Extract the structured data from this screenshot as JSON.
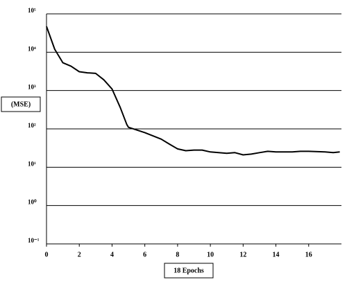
{
  "chart_data": {
    "type": "line",
    "y_label": "(MSE)",
    "x_label": "18 Epochs",
    "x": [
      0,
      0.5,
      1,
      1.5,
      2,
      2.5,
      3,
      3.5,
      4,
      4.5,
      4.9,
      5,
      6,
      7,
      7.5,
      8,
      8.5,
      9,
      9.5,
      10,
      11,
      11.5,
      12,
      12.5,
      13,
      13.5,
      14,
      15,
      15.5,
      16,
      17,
      17.5,
      17.9
    ],
    "series": [
      {
        "name": "MSE",
        "color": "#000000",
        "values": [
          47000,
          12000,
          5300,
          4300,
          3100,
          2900,
          2800,
          1900,
          1100,
          360,
          130,
          110,
          80,
          54,
          40,
          30,
          27,
          28,
          28,
          25,
          23,
          24,
          21,
          22,
          24,
          26,
          25,
          25,
          26,
          26,
          25,
          24,
          25
        ]
      }
    ],
    "xlim": [
      0,
      18
    ],
    "xticks": [
      0,
      2,
      4,
      6,
      8,
      10,
      12,
      14,
      16
    ],
    "ylim": [
      0.1,
      100000
    ],
    "log_y": true,
    "grid": true,
    "yticks": [
      {
        "value": 0.1,
        "label": "10⁻¹"
      },
      {
        "value": 1,
        "label": "10⁰"
      },
      {
        "value": 10,
        "label": "10¹"
      },
      {
        "value": 100,
        "label": "10²"
      },
      {
        "value": 1000,
        "label": "10³"
      },
      {
        "value": 10000,
        "label": "10⁴"
      },
      {
        "value": 100000,
        "label": "10⁵"
      }
    ]
  }
}
